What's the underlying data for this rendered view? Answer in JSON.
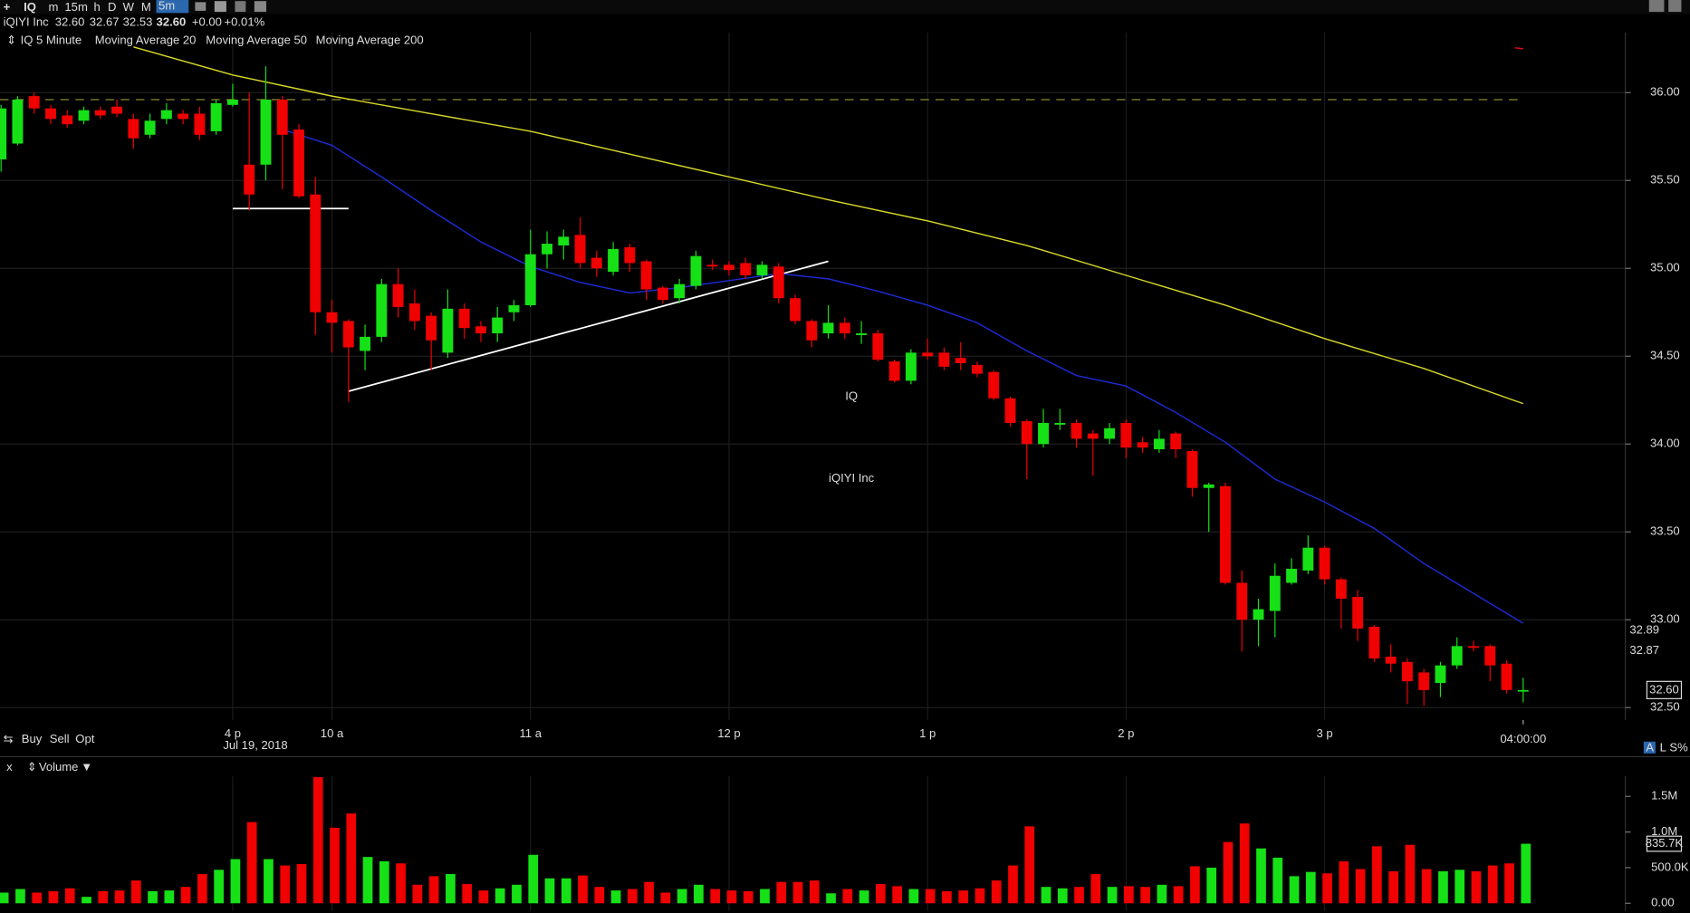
{
  "toolbar": {
    "symbol": "IQ",
    "intervals": [
      "m",
      "15m",
      "h",
      "D",
      "W",
      "M"
    ],
    "active_interval": "5m"
  },
  "quote": {
    "name": "iQIYI Inc",
    "open": "32.60",
    "high": "32.67",
    "low": "32.53",
    "last": "32.60",
    "change": "+0.00",
    "change_pct": "+0.01%"
  },
  "watermark": {
    "symbol": "IQ",
    "name": "iQIYI Inc"
  },
  "trade_buttons": [
    "Buy",
    "Sell",
    "Opt"
  ],
  "scale_buttons": [
    "A",
    "L",
    "S%"
  ],
  "price_markers": [
    "32.89",
    "32.87"
  ],
  "date_label": "Jul 19, 2018",
  "volume_close": "x",
  "chart_data": [
    {
      "type": "candlestick",
      "title": "IQ 5 Minute",
      "up_color": "#16e016",
      "down_color": "#f00000",
      "open": [
        35.62,
        35.71,
        35.98,
        35.91,
        35.87,
        35.84,
        35.9,
        35.92,
        35.85,
        35.76,
        35.85,
        35.88,
        35.88,
        35.78,
        35.93,
        35.59,
        35.59,
        35.96,
        35.79,
        35.42,
        34.75,
        34.7,
        34.53,
        34.61,
        34.91,
        34.8,
        34.73,
        34.52,
        34.77,
        34.67,
        34.63,
        34.75,
        34.79,
        35.08,
        35.13,
        35.19,
        35.06,
        34.98,
        35.12,
        35.04,
        34.89,
        34.83,
        34.9,
        35.02,
        35.02,
        35.03,
        34.96,
        35.01,
        34.83,
        34.7,
        34.63,
        34.69,
        34.62,
        34.63,
        34.47,
        34.36,
        34.52,
        34.52,
        34.49,
        34.45,
        34.41,
        34.26,
        34.13,
        34.0,
        34.11,
        34.12,
        34.06,
        34.03,
        34.12,
        34.01,
        33.97,
        34.06,
        33.96,
        33.75,
        33.76,
        33.21,
        33.0,
        33.05,
        33.21,
        33.28,
        33.41,
        33.23,
        33.13,
        32.96,
        32.79,
        32.76,
        32.7,
        32.64,
        32.74,
        32.85,
        32.85,
        32.75,
        32.6
      ],
      "high": [
        35.93,
        35.98,
        36.0,
        35.93,
        35.9,
        35.92,
        35.92,
        35.96,
        35.88,
        35.88,
        35.94,
        35.9,
        35.92,
        35.96,
        36.05,
        36.0,
        36.15,
        35.98,
        35.82,
        35.52,
        34.82,
        34.71,
        34.68,
        34.94,
        35.0,
        34.88,
        34.75,
        34.88,
        34.8,
        34.7,
        34.78,
        34.82,
        35.22,
        35.21,
        35.22,
        35.29,
        35.1,
        35.15,
        35.14,
        35.05,
        34.9,
        34.94,
        35.1,
        35.05,
        35.04,
        35.06,
        35.04,
        35.03,
        34.85,
        34.71,
        34.79,
        34.72,
        34.7,
        34.65,
        34.48,
        34.54,
        34.6,
        34.55,
        34.58,
        34.47,
        34.42,
        34.27,
        34.14,
        34.2,
        34.2,
        34.14,
        34.08,
        34.12,
        34.14,
        34.04,
        34.08,
        34.07,
        33.97,
        33.78,
        33.78,
        33.28,
        33.12,
        33.32,
        33.35,
        33.48,
        33.42,
        33.24,
        33.17,
        32.97,
        32.86,
        32.78,
        32.72,
        32.76,
        32.9,
        32.88,
        32.86,
        32.77,
        32.67
      ],
      "low": [
        35.55,
        35.7,
        35.88,
        35.82,
        35.8,
        35.82,
        35.85,
        35.86,
        35.68,
        35.74,
        35.82,
        35.82,
        35.73,
        35.76,
        35.92,
        35.33,
        35.5,
        35.45,
        35.4,
        34.62,
        34.52,
        34.24,
        34.42,
        34.58,
        34.72,
        34.65,
        34.42,
        34.49,
        34.6,
        34.58,
        34.58,
        34.7,
        34.78,
        35.0,
        35.05,
        35.0,
        34.95,
        34.96,
        34.98,
        34.82,
        34.8,
        34.8,
        34.88,
        34.99,
        34.96,
        34.94,
        34.94,
        34.8,
        34.68,
        34.55,
        34.6,
        34.6,
        34.57,
        34.47,
        34.35,
        34.34,
        34.48,
        34.42,
        34.42,
        34.38,
        34.25,
        34.1,
        33.8,
        33.98,
        34.08,
        33.98,
        33.82,
        34.0,
        33.92,
        33.95,
        33.95,
        33.92,
        33.7,
        33.5,
        33.2,
        32.82,
        32.85,
        32.9,
        33.2,
        33.26,
        33.2,
        32.95,
        32.88,
        32.76,
        32.7,
        32.52,
        32.51,
        32.56,
        32.72,
        32.82,
        32.65,
        32.58,
        32.53
      ],
      "close": [
        35.91,
        35.96,
        35.91,
        35.85,
        35.82,
        35.9,
        35.87,
        35.88,
        35.74,
        35.84,
        35.9,
        35.85,
        35.76,
        35.94,
        35.96,
        35.42,
        35.96,
        35.76,
        35.41,
        34.75,
        34.69,
        34.55,
        34.61,
        34.91,
        34.78,
        34.7,
        34.59,
        34.77,
        34.66,
        34.63,
        34.72,
        34.79,
        35.08,
        35.14,
        35.18,
        35.03,
        35.0,
        35.11,
        35.03,
        34.88,
        34.82,
        34.91,
        35.07,
        35.01,
        34.99,
        34.96,
        35.02,
        34.83,
        34.7,
        34.59,
        34.69,
        34.63,
        34.63,
        34.48,
        34.36,
        34.52,
        34.5,
        34.44,
        34.46,
        34.4,
        34.26,
        34.12,
        34.0,
        34.12,
        34.12,
        34.03,
        34.03,
        34.09,
        33.98,
        33.98,
        34.03,
        33.97,
        33.75,
        33.77,
        33.21,
        33.0,
        33.06,
        33.25,
        33.29,
        33.41,
        33.23,
        33.12,
        32.95,
        32.78,
        32.75,
        32.65,
        32.6,
        32.74,
        32.85,
        32.84,
        32.74,
        32.6,
        32.6
      ],
      "series": [
        {
          "name": "Moving Average 20",
          "color": "#1c2bd6",
          "x": [
            17,
            20,
            23,
            26,
            29,
            32,
            35,
            38,
            41,
            44,
            47,
            50,
            53,
            56,
            59,
            62,
            65,
            68,
            71,
            74,
            77,
            80,
            83,
            86,
            89,
            92
          ],
          "values": [
            35.79,
            35.7,
            35.52,
            35.33,
            35.15,
            35.01,
            34.92,
            34.86,
            34.89,
            34.93,
            34.97,
            34.94,
            34.87,
            34.79,
            34.69,
            34.53,
            34.39,
            34.33,
            34.18,
            34.01,
            33.8,
            33.67,
            33.52,
            33.32,
            33.15,
            32.98
          ]
        },
        {
          "name": "Moving Average 50",
          "color": "#d8d82a",
          "x": [
            8,
            14,
            20,
            26,
            32,
            38,
            44,
            50,
            56,
            62,
            68,
            74,
            80,
            86,
            92
          ],
          "values": [
            36.26,
            36.1,
            35.98,
            35.88,
            35.78,
            35.65,
            35.52,
            35.39,
            35.27,
            35.13,
            34.96,
            34.79,
            34.6,
            34.43,
            34.23
          ]
        },
        {
          "name": "Moving Average 200",
          "color": "#e01010",
          "x": [
            91.5,
            92
          ],
          "values": [
            36.255,
            36.25
          ]
        }
      ],
      "hlines": [
        {
          "value": 35.96,
          "color": "#8c8a34",
          "dashed": true
        }
      ],
      "trendlines": [
        {
          "x": [
            14,
            21
          ],
          "values": [
            35.34,
            35.34
          ],
          "color": "#ffffff"
        },
        {
          "x": [
            21,
            50
          ],
          "values": [
            34.3,
            35.04
          ],
          "color": "#ffffff"
        }
      ],
      "xticks": [
        {
          "value": 14,
          "label": "4 p"
        },
        {
          "value": 20,
          "label": "10 a"
        },
        {
          "value": 32,
          "label": "11 a"
        },
        {
          "value": 44,
          "label": "12 p"
        },
        {
          "value": 56,
          "label": "1 p"
        },
        {
          "value": 68,
          "label": "2 p"
        },
        {
          "value": 80,
          "label": "3 p"
        }
      ],
      "cursor_time": {
        "value": 92,
        "label": "04:00:00"
      },
      "ylim": [
        32.45,
        36.3
      ],
      "yticks": [
        {
          "value": 32.5,
          "label": "32.50"
        },
        {
          "value": 33,
          "label": "33.00"
        },
        {
          "value": 33.5,
          "label": "33.50"
        },
        {
          "value": 34,
          "label": "34.00"
        },
        {
          "value": 34.5,
          "label": "34.50"
        },
        {
          "value": 35,
          "label": "35.00"
        },
        {
          "value": 35.5,
          "label": "35.50"
        },
        {
          "value": 36,
          "label": "36.00"
        }
      ],
      "last_price": {
        "value": 32.6,
        "label": "32.60"
      },
      "grid": true
    },
    {
      "type": "bar",
      "title": "Volume",
      "values": [
        150000,
        200000,
        150000,
        170000,
        210000,
        90000,
        170000,
        180000,
        320000,
        170000,
        180000,
        230000,
        410000,
        470000,
        620000,
        1140000,
        620000,
        530000,
        550000,
        1770000,
        1060000,
        1260000,
        650000,
        590000,
        560000,
        260000,
        380000,
        410000,
        270000,
        180000,
        210000,
        260000,
        680000,
        350000,
        350000,
        390000,
        230000,
        180000,
        200000,
        300000,
        150000,
        200000,
        260000,
        200000,
        180000,
        170000,
        200000,
        300000,
        300000,
        320000,
        140000,
        200000,
        180000,
        270000,
        240000,
        200000,
        200000,
        170000,
        180000,
        210000,
        320000,
        530000,
        1080000,
        230000,
        210000,
        230000,
        410000,
        230000,
        240000,
        230000,
        260000,
        240000,
        520000,
        500000,
        860000,
        1120000,
        770000,
        640000,
        380000,
        440000,
        420000,
        590000,
        480000,
        800000,
        450000,
        820000,
        480000,
        450000,
        470000,
        450000,
        530000,
        560000,
        835700
      ],
      "ylim": [
        0,
        1800000
      ],
      "yticks": [
        {
          "value": 0,
          "label": "0.00"
        },
        {
          "value": 500000,
          "label": "500.0K"
        },
        {
          "value": 1000000,
          "label": "1.0M"
        },
        {
          "value": 1500000,
          "label": "1.5M"
        }
      ],
      "last_value": {
        "value": 835700,
        "label": "835.7K"
      }
    }
  ]
}
